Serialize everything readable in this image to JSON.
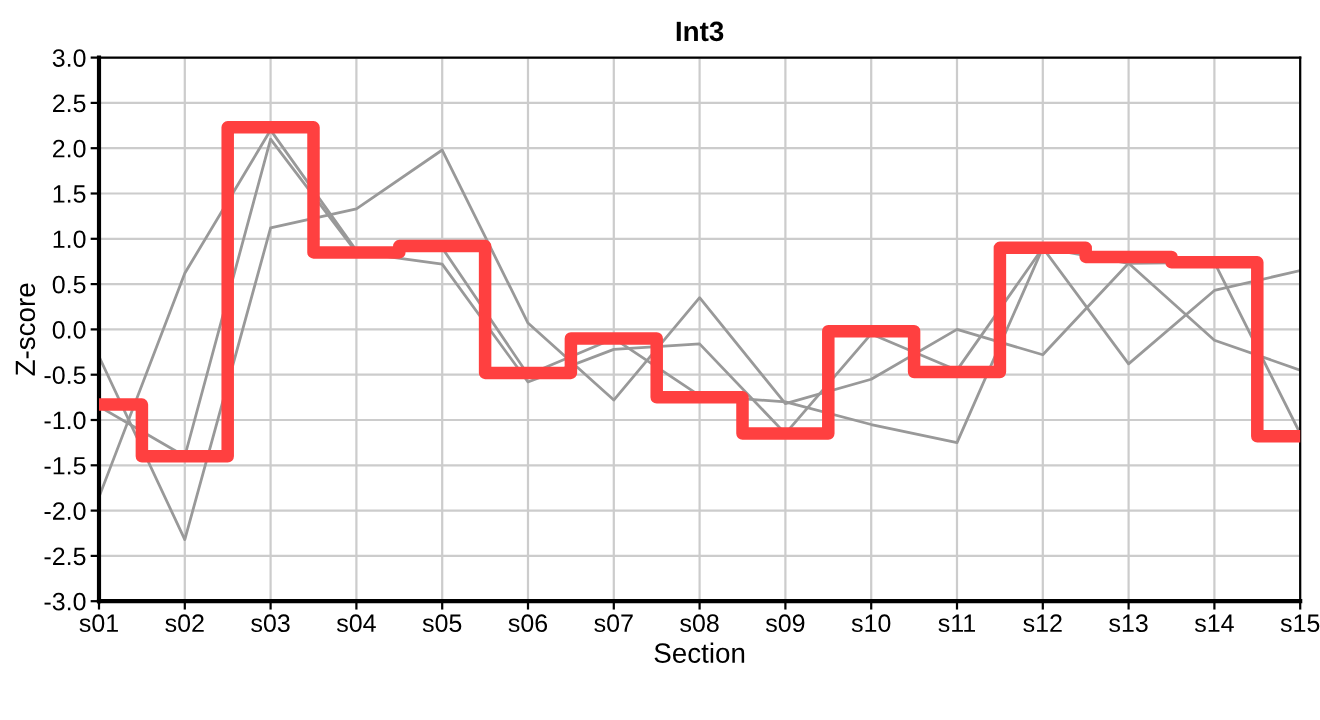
{
  "chart_data": {
    "type": "line",
    "title": "Int3",
    "xlabel": "Section",
    "ylabel": "Z-score",
    "categories": [
      "s01",
      "s02",
      "s03",
      "s04",
      "s05",
      "s06",
      "s07",
      "s08",
      "s09",
      "s10",
      "s11",
      "s12",
      "s13",
      "s14",
      "s15"
    ],
    "series": [
      {
        "color": "#999999",
        "values": [
          -1.85,
          0.62,
          2.2,
          0.87,
          0.9,
          -0.5,
          -0.1,
          -0.73,
          -0.8,
          -1.05,
          -1.25,
          0.9,
          0.73,
          -0.12,
          -0.45
        ]
      },
      {
        "color": "#999999",
        "values": [
          -0.85,
          -1.4,
          2.1,
          0.85,
          0.72,
          -0.58,
          -0.22,
          -0.16,
          -1.15,
          -0.05,
          -0.45,
          0.9,
          -0.38,
          0.43,
          0.65
        ]
      },
      {
        "color": "#999999",
        "values": [
          -0.3,
          -2.32,
          1.12,
          1.33,
          1.98,
          0.07,
          -0.78,
          0.35,
          -0.82,
          -0.55,
          0.0,
          -0.28,
          0.73,
          0.74,
          -1.15
        ]
      },
      {
        "type": "step",
        "color": "#ff4040",
        "values": [
          -0.83,
          -1.4,
          2.23,
          0.85,
          0.92,
          -0.48,
          -0.1,
          -0.75,
          -1.15,
          -0.02,
          -0.47,
          0.9,
          0.8,
          0.74,
          -1.18
        ]
      }
    ],
    "ylim": [
      -3.0,
      3.0
    ],
    "yticks": [
      {
        "value": -3.0,
        "label": "-3.0"
      },
      {
        "value": -2.5,
        "label": "-2.5"
      },
      {
        "value": -2.0,
        "label": "-2.0"
      },
      {
        "value": -1.5,
        "label": "-1.5"
      },
      {
        "value": -1.0,
        "label": "-1.0"
      },
      {
        "value": -0.5,
        "label": "-0.5"
      },
      {
        "value": 0.0,
        "label": "0.0"
      },
      {
        "value": 0.5,
        "label": "0.5"
      },
      {
        "value": 1.0,
        "label": "1.0"
      },
      {
        "value": 1.5,
        "label": "1.5"
      },
      {
        "value": 2.0,
        "label": "2.0"
      },
      {
        "value": 2.5,
        "label": "2.5"
      },
      {
        "value": 3.0,
        "label": "3.0"
      }
    ],
    "grid": true
  }
}
